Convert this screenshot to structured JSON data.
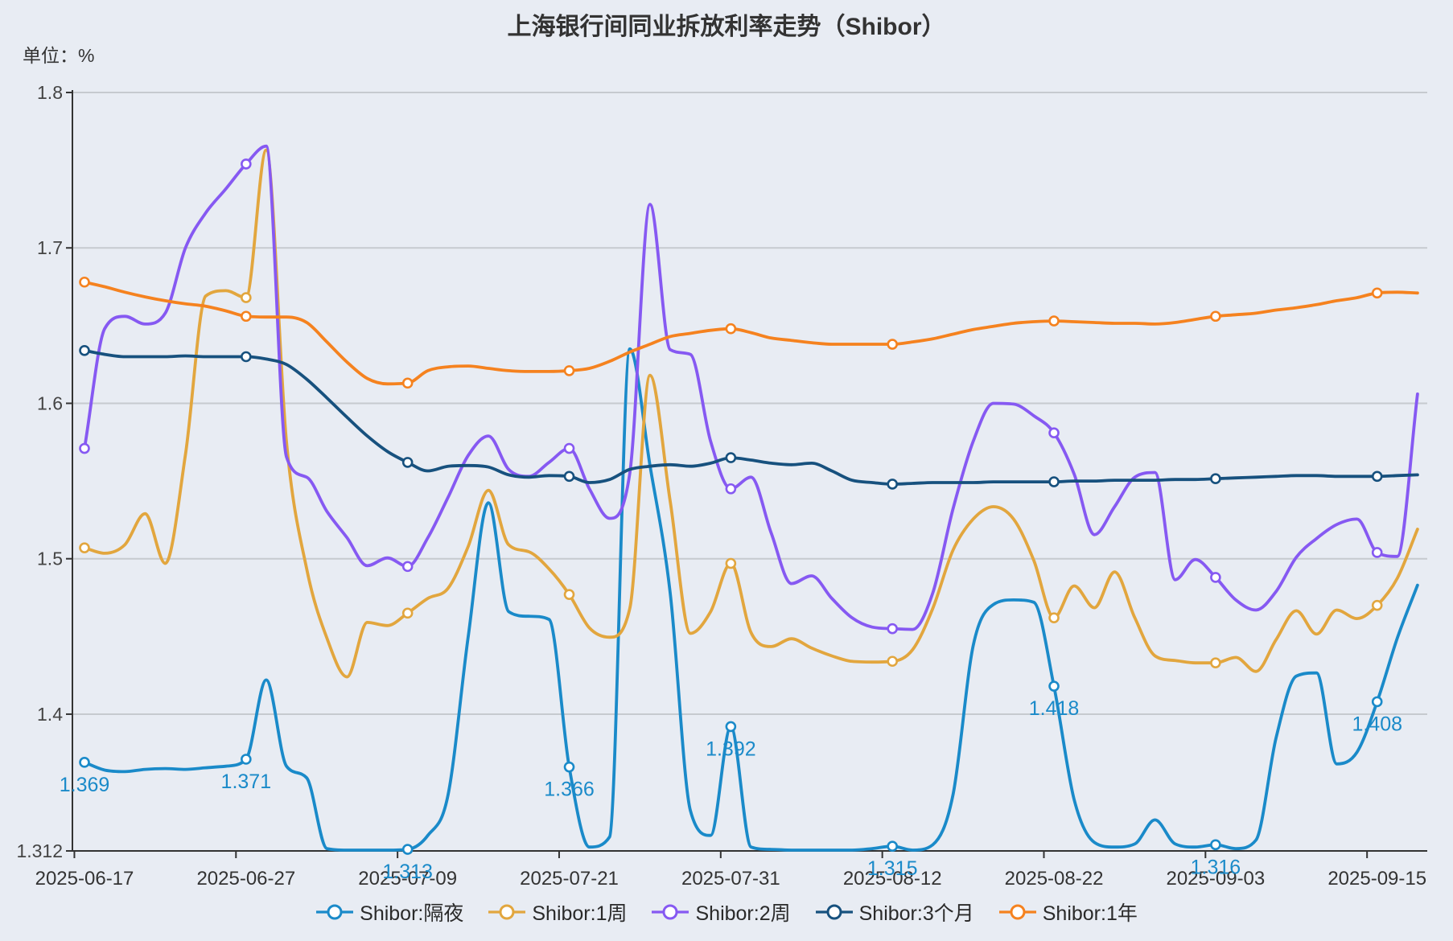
{
  "title": "上海银行间同业拆放利率走势（Shibor）",
  "unit_label": "单位：%",
  "chart_data": {
    "type": "line",
    "title": "上海银行间同业拆放利率走势（Shibor）",
    "ylabel": "单位：%",
    "ylim": [
      1.312,
      1.8
    ],
    "grid": "horizontal-only",
    "legend_position": "bottom",
    "background_color": "#e8ecf3",
    "gridline_color": "#c6cacf",
    "axis_color": "#333333",
    "y_tick_labels": [
      "1.8",
      "1.7",
      "1.6",
      "1.5",
      "1.4",
      "1.312"
    ],
    "y_tick_values": [
      1.8,
      1.7,
      1.6,
      1.5,
      1.4,
      1.312
    ],
    "y_gridline_values": [
      1.4,
      1.5,
      1.6,
      1.7,
      1.8
    ],
    "x_tick_labels": [
      "2025-06-17",
      "2025-06-27",
      "2025-07-09",
      "2025-07-21",
      "2025-07-31",
      "2025-08-12",
      "2025-08-22",
      "2025-09-03",
      "2025-09-15"
    ],
    "x_tick_point_indices": [
      0,
      8,
      16,
      24,
      32,
      40,
      48,
      56,
      64
    ],
    "n_points": 67,
    "series": [
      {
        "name": "Shibor:隔夜",
        "color": "#1a8ac9",
        "show_point_labels": true,
        "point_labels": [
          "1.369",
          "1.371",
          "1.313",
          "1.366",
          "1.392",
          "1.315",
          "1.418",
          "1.316",
          "1.408"
        ],
        "tick_values": [
          1.369,
          1.371,
          1.313,
          1.366,
          1.392,
          1.315,
          1.418,
          1.316,
          1.408
        ],
        "values": [
          1.369,
          1.364,
          1.363,
          1.3645,
          1.365,
          1.3645,
          1.3655,
          1.3665,
          1.371,
          1.422,
          1.3665,
          1.359,
          1.3135,
          1.3125,
          1.3125,
          1.3125,
          1.313,
          1.322,
          1.348,
          1.45,
          1.536,
          1.466,
          1.463,
          1.461,
          1.366,
          1.3145,
          1.321,
          1.635,
          1.56,
          1.478,
          1.338,
          1.322,
          1.392,
          1.3145,
          1.313,
          1.3125,
          1.3125,
          1.3125,
          1.3125,
          1.3135,
          1.315,
          1.3125,
          1.316,
          1.348,
          1.444,
          1.4705,
          1.4735,
          1.472,
          1.418,
          1.345,
          1.3175,
          1.3145,
          1.3165,
          1.332,
          1.3165,
          1.3145,
          1.316,
          1.3135,
          1.319,
          1.385,
          1.4245,
          1.4265,
          1.368,
          1.3755,
          1.408,
          1.449,
          1.483
        ]
      },
      {
        "name": "Shibor:1周",
        "color": "#e2a63e",
        "show_point_labels": false,
        "point_labels": [],
        "tick_values": [
          1.507,
          1.668,
          1.465,
          1.477,
          1.497,
          1.434,
          1.462,
          1.433,
          1.47
        ],
        "values": [
          1.507,
          1.5035,
          1.509,
          1.529,
          1.497,
          1.567,
          1.669,
          1.6725,
          1.668,
          1.763,
          1.575,
          1.4935,
          1.449,
          1.424,
          1.459,
          1.457,
          1.465,
          1.4745,
          1.481,
          1.508,
          1.544,
          1.509,
          1.5045,
          1.4935,
          1.477,
          1.4555,
          1.4495,
          1.468,
          1.618,
          1.537,
          1.452,
          1.466,
          1.497,
          1.4525,
          1.4435,
          1.4485,
          1.4425,
          1.4375,
          1.434,
          1.4335,
          1.434,
          1.4415,
          1.468,
          1.5055,
          1.5255,
          1.5335,
          1.5255,
          1.499,
          1.462,
          1.4825,
          1.4685,
          1.4915,
          1.462,
          1.4375,
          1.4345,
          1.433,
          1.433,
          1.4365,
          1.4275,
          1.448,
          1.4665,
          1.4515,
          1.467,
          1.4615,
          1.47,
          1.4875,
          1.519
        ]
      },
      {
        "name": "Shibor:2周",
        "color": "#8659f2",
        "show_point_labels": false,
        "point_labels": [],
        "tick_values": [
          1.571,
          1.754,
          1.495,
          1.571,
          1.545,
          1.455,
          1.581,
          1.488,
          1.504
        ],
        "values": [
          1.571,
          1.648,
          1.656,
          1.651,
          1.658,
          1.7,
          1.7225,
          1.738,
          1.754,
          1.7655,
          1.5655,
          1.5525,
          1.5305,
          1.5135,
          1.4955,
          1.5005,
          1.495,
          1.5135,
          1.5395,
          1.5665,
          1.579,
          1.5575,
          1.553,
          1.562,
          1.571,
          1.545,
          1.526,
          1.555,
          1.728,
          1.6345,
          1.6315,
          1.5755,
          1.545,
          1.5525,
          1.5165,
          1.484,
          1.489,
          1.4745,
          1.462,
          1.456,
          1.455,
          1.4545,
          1.478,
          1.532,
          1.5755,
          1.6,
          1.5995,
          1.592,
          1.581,
          1.5545,
          1.5155,
          1.5335,
          1.5525,
          1.5555,
          1.4865,
          1.4995,
          1.488,
          1.4735,
          1.467,
          1.479,
          1.501,
          1.513,
          1.522,
          1.5255,
          1.504,
          1.5015,
          1.606
        ]
      },
      {
        "name": "Shibor:3个月",
        "color": "#17517e",
        "show_point_labels": false,
        "point_labels": [],
        "tick_values": [
          1.634,
          1.63,
          1.562,
          1.553,
          1.565,
          1.548,
          1.5495,
          1.5515,
          1.553
        ],
        "values": [
          1.634,
          1.6315,
          1.63,
          1.63,
          1.63,
          1.6305,
          1.63,
          1.63,
          1.63,
          1.6285,
          1.625,
          1.6155,
          1.6035,
          1.591,
          1.579,
          1.569,
          1.562,
          1.5565,
          1.5595,
          1.56,
          1.559,
          1.554,
          1.5525,
          1.5535,
          1.553,
          1.549,
          1.551,
          1.5575,
          1.5595,
          1.5605,
          1.5595,
          1.5615,
          1.565,
          1.5635,
          1.5615,
          1.5605,
          1.5615,
          1.5565,
          1.5505,
          1.549,
          1.548,
          1.5485,
          1.549,
          1.549,
          1.549,
          1.5495,
          1.5495,
          1.5495,
          1.5495,
          1.55,
          1.55,
          1.5505,
          1.5505,
          1.5505,
          1.551,
          1.551,
          1.5515,
          1.552,
          1.5525,
          1.553,
          1.5535,
          1.5535,
          1.553,
          1.553,
          1.553,
          1.5535,
          1.554
        ]
      },
      {
        "name": "Shibor:1年",
        "color": "#f5821f",
        "show_point_labels": false,
        "point_labels": [],
        "tick_values": [
          1.678,
          1.656,
          1.613,
          1.621,
          1.648,
          1.638,
          1.653,
          1.656,
          1.671
        ],
        "values": [
          1.678,
          1.675,
          1.6715,
          1.6685,
          1.666,
          1.664,
          1.6625,
          1.6595,
          1.656,
          1.6555,
          1.6555,
          1.652,
          1.6395,
          1.6265,
          1.616,
          1.6125,
          1.613,
          1.621,
          1.6235,
          1.624,
          1.6225,
          1.621,
          1.6205,
          1.6205,
          1.621,
          1.6225,
          1.627,
          1.633,
          1.638,
          1.643,
          1.645,
          1.647,
          1.648,
          1.6455,
          1.642,
          1.6405,
          1.639,
          1.638,
          1.638,
          1.638,
          1.638,
          1.6395,
          1.6415,
          1.6445,
          1.6475,
          1.6495,
          1.6515,
          1.6525,
          1.653,
          1.6525,
          1.652,
          1.6515,
          1.6515,
          1.651,
          1.652,
          1.654,
          1.656,
          1.657,
          1.658,
          1.66,
          1.6615,
          1.6635,
          1.666,
          1.668,
          1.671,
          1.6715,
          1.671
        ]
      }
    ]
  }
}
